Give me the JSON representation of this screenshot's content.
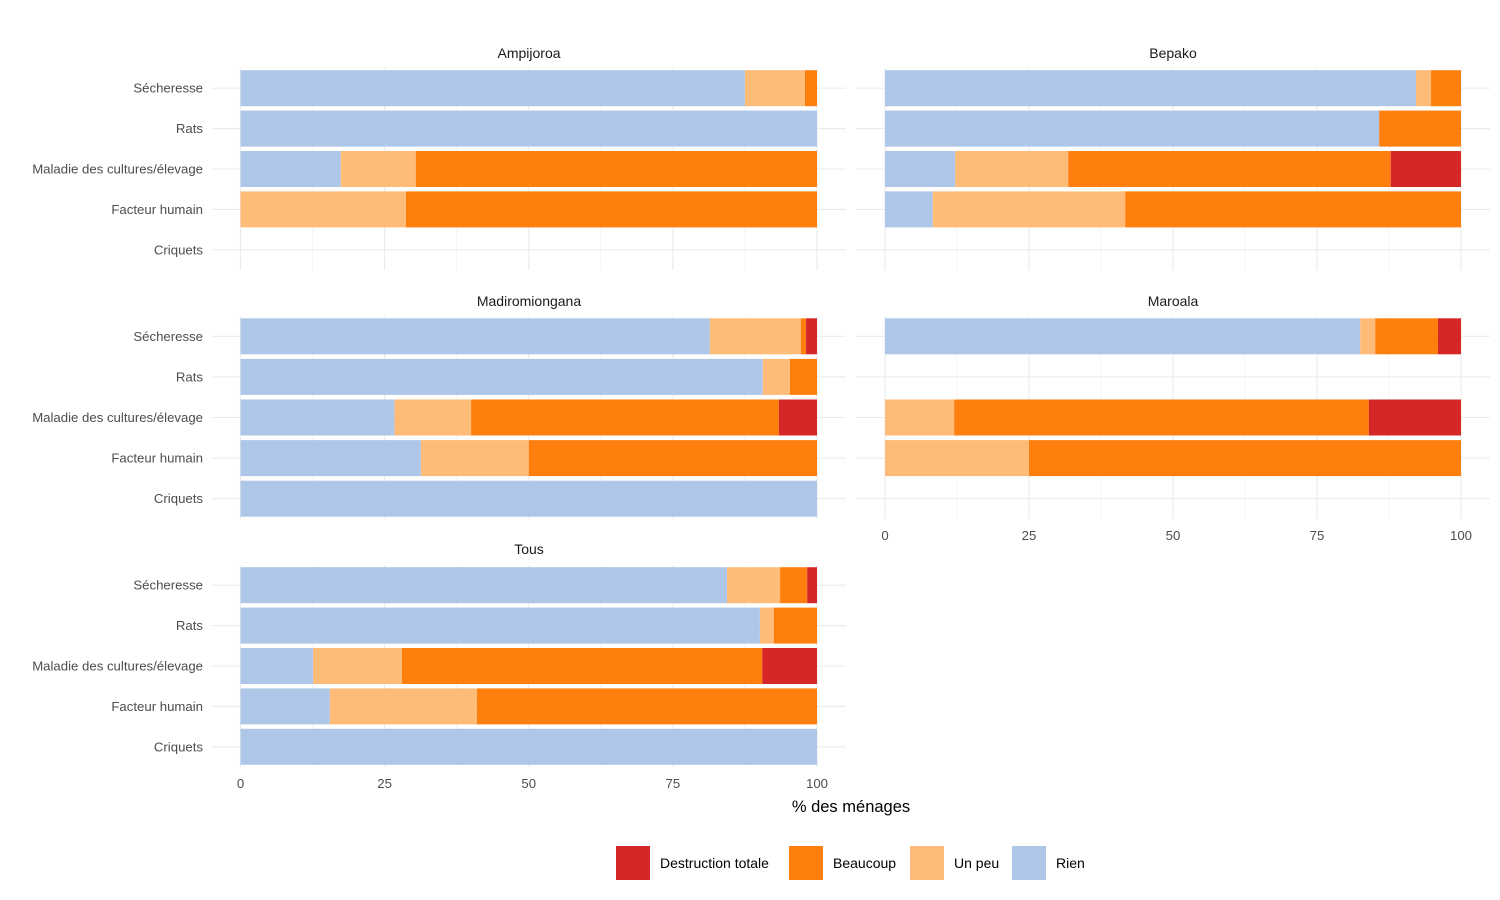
{
  "chart_data": {
    "type": "bar",
    "orientation": "horizontal",
    "stacked": true,
    "faceted": true,
    "xlabel": "% des ménages",
    "ylabel": "",
    "xlim": [
      0,
      100
    ],
    "xticks": [
      "0",
      "25",
      "50",
      "75",
      "100"
    ],
    "grid": true,
    "legend_position": "bottom",
    "categories": [
      "Sécheresse",
      "Rats",
      "Maladie des cultures/élevage",
      "Facteur humain",
      "Criquets"
    ],
    "legend": [
      {
        "key": "destruction",
        "label": "Destruction totale",
        "color": "#d62728"
      },
      {
        "key": "beaucoup",
        "label": "Beaucoup",
        "color": "#ff7f0e"
      },
      {
        "key": "unpeu",
        "label": "Un peu",
        "color": "#ffbb78"
      },
      {
        "key": "rien",
        "label": "Rien",
        "color": "#aec7e8"
      }
    ],
    "stack_order": [
      "rien",
      "unpeu",
      "beaucoup",
      "destruction"
    ],
    "panels": [
      {
        "title": "Ampijoroa",
        "values": {
          "Sécheresse": {
            "rien": 87.5,
            "unpeu": 10.4,
            "beaucoup": 2.1,
            "destruction": 0
          },
          "Rats": {
            "rien": 100,
            "unpeu": 0,
            "beaucoup": 0,
            "destruction": 0
          },
          "Maladie des cultures/élevage": {
            "rien": 17.4,
            "unpeu": 13.0,
            "beaucoup": 69.6,
            "destruction": 0
          },
          "Facteur humain": {
            "rien": 0,
            "unpeu": 28.7,
            "beaucoup": 71.3,
            "destruction": 0
          },
          "Criquets": {
            "rien": 0,
            "unpeu": 0,
            "beaucoup": 0,
            "destruction": 0
          }
        }
      },
      {
        "title": "Bepako",
        "values": {
          "Sécheresse": {
            "rien": 92.2,
            "unpeu": 2.6,
            "beaucoup": 5.2,
            "destruction": 0
          },
          "Rats": {
            "rien": 85.8,
            "unpeu": 0,
            "beaucoup": 14.2,
            "destruction": 0
          },
          "Maladie des cultures/élevage": {
            "rien": 12.2,
            "unpeu": 19.6,
            "beaucoup": 56.0,
            "destruction": 12.2
          },
          "Facteur humain": {
            "rien": 8.3,
            "unpeu": 33.4,
            "beaucoup": 58.3,
            "destruction": 0
          },
          "Criquets": {
            "rien": 0,
            "unpeu": 0,
            "beaucoup": 0,
            "destruction": 0
          }
        }
      },
      {
        "title": "Madiromiongana",
        "values": {
          "Sécheresse": {
            "rien": 81.4,
            "unpeu": 15.8,
            "beaucoup": 0.9,
            "destruction": 1.9
          },
          "Rats": {
            "rien": 90.6,
            "unpeu": 4.7,
            "beaucoup": 4.7,
            "destruction": 0
          },
          "Maladie des cultures/élevage": {
            "rien": 26.7,
            "unpeu": 13.3,
            "beaucoup": 53.4,
            "destruction": 6.6
          },
          "Facteur humain": {
            "rien": 31.3,
            "unpeu": 18.7,
            "beaucoup": 50.0,
            "destruction": 0
          },
          "Criquets": {
            "rien": 100,
            "unpeu": 0,
            "beaucoup": 0,
            "destruction": 0
          }
        }
      },
      {
        "title": "Maroala",
        "values": {
          "Sécheresse": {
            "rien": 82.5,
            "unpeu": 2.6,
            "beaucoup": 10.9,
            "destruction": 4.0
          },
          "Rats": {
            "rien": 0,
            "unpeu": 0,
            "beaucoup": 0,
            "destruction": 0
          },
          "Maladie des cultures/élevage": {
            "rien": 0,
            "unpeu": 12.0,
            "beaucoup": 72.0,
            "destruction": 16.0
          },
          "Facteur humain": {
            "rien": 0,
            "unpeu": 25.0,
            "beaucoup": 75.0,
            "destruction": 0
          },
          "Criquets": {
            "rien": 0,
            "unpeu": 0,
            "beaucoup": 0,
            "destruction": 0
          }
        }
      },
      {
        "title": "Tous",
        "values": {
          "Sécheresse": {
            "rien": 84.4,
            "unpeu": 9.2,
            "beaucoup": 4.7,
            "destruction": 1.7
          },
          "Rats": {
            "rien": 90.1,
            "unpeu": 2.4,
            "beaucoup": 7.5,
            "destruction": 0
          },
          "Maladie des cultures/élevage": {
            "rien": 12.6,
            "unpeu": 15.4,
            "beaucoup": 62.5,
            "destruction": 9.5
          },
          "Facteur humain": {
            "rien": 15.5,
            "unpeu": 25.5,
            "beaucoup": 59.0,
            "destruction": 0
          },
          "Criquets": {
            "rien": 100,
            "unpeu": 0,
            "beaucoup": 0,
            "destruction": 0
          }
        }
      }
    ]
  }
}
